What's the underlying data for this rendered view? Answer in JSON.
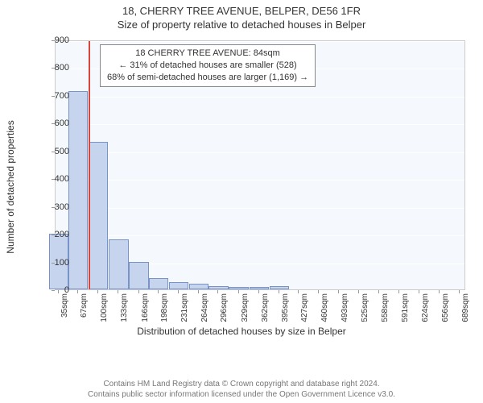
{
  "title_main": "18, CHERRY TREE AVENUE, BELPER, DE56 1FR",
  "title_sub": "Size of property relative to detached houses in Belper",
  "y_label": "Number of detached properties",
  "x_label": "Distribution of detached houses by size in Belper",
  "footer_line1": "Contains HM Land Registry data © Crown copyright and database right 2024.",
  "footer_line2": "Contains public sector information licensed under the Open Government Licence v3.0.",
  "infobox": {
    "line1": "18 CHERRY TREE AVENUE: 84sqm",
    "line2": "← 31% of detached houses are smaller (528)",
    "line3": "68% of semi-detached houses are larger (1,169) →"
  },
  "chart": {
    "type": "histogram",
    "background_color": "#f5f8fc",
    "grid_color": "#ffffff",
    "bar_fill": "#c6d4ee",
    "bar_border": "#7893c9",
    "ref_line_color": "#d9453a",
    "ref_line_x": 84,
    "ylim": [
      0,
      900
    ],
    "ytick_step": 100,
    "yticks": [
      0,
      100,
      200,
      300,
      400,
      500,
      600,
      700,
      800,
      900
    ],
    "xlim": [
      30,
      700
    ],
    "xticks": [
      35,
      67,
      100,
      133,
      166,
      198,
      231,
      264,
      296,
      329,
      362,
      395,
      427,
      460,
      493,
      525,
      558,
      591,
      624,
      656,
      689
    ],
    "xtick_labels": [
      "35sqm",
      "67sqm",
      "100sqm",
      "133sqm",
      "166sqm",
      "198sqm",
      "231sqm",
      "264sqm",
      "296sqm",
      "329sqm",
      "362sqm",
      "395sqm",
      "427sqm",
      "460sqm",
      "493sqm",
      "525sqm",
      "558sqm",
      "591sqm",
      "624sqm",
      "656sqm",
      "689sqm"
    ],
    "bar_width_x": 32,
    "bars": [
      {
        "x": 35,
        "y": 200
      },
      {
        "x": 67,
        "y": 715
      },
      {
        "x": 100,
        "y": 530
      },
      {
        "x": 133,
        "y": 180
      },
      {
        "x": 166,
        "y": 100
      },
      {
        "x": 198,
        "y": 40
      },
      {
        "x": 231,
        "y": 25
      },
      {
        "x": 264,
        "y": 20
      },
      {
        "x": 296,
        "y": 12
      },
      {
        "x": 329,
        "y": 10
      },
      {
        "x": 362,
        "y": 8
      },
      {
        "x": 395,
        "y": 12
      },
      {
        "x": 427,
        "y": 0
      },
      {
        "x": 460,
        "y": 0
      },
      {
        "x": 493,
        "y": 0
      },
      {
        "x": 525,
        "y": 0
      },
      {
        "x": 558,
        "y": 0
      },
      {
        "x": 591,
        "y": 0
      },
      {
        "x": 624,
        "y": 0
      },
      {
        "x": 656,
        "y": 0
      },
      {
        "x": 689,
        "y": 0
      }
    ],
    "title_fontsize": 13,
    "label_fontsize": 12,
    "tick_fontsize": 11
  }
}
